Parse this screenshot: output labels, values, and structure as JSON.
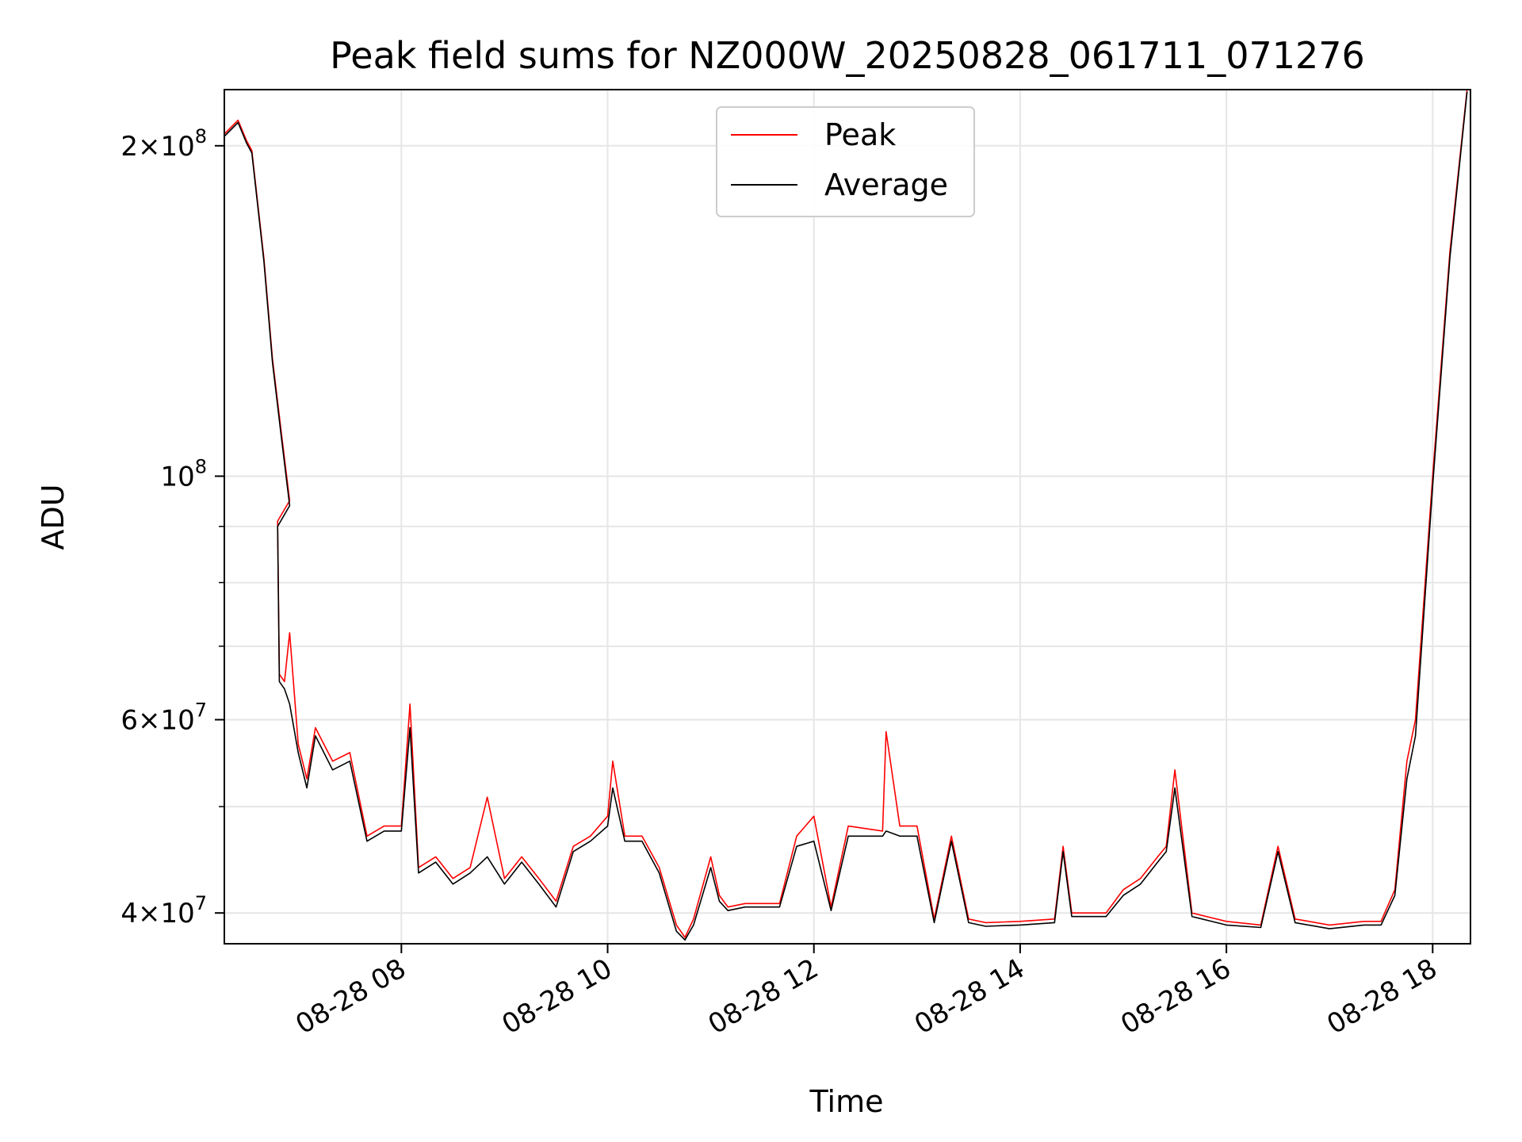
{
  "chart_data": {
    "type": "line",
    "title": "Peak field sums for NZ000W_20250828_061711_071276",
    "xlabel": "Time",
    "ylabel": "ADU",
    "y_scale": "log",
    "ylim": [
      37500000,
      225000000
    ],
    "xlim": [
      "2025-08-28 06:17",
      "2025-08-28 18:22"
    ],
    "grid": true,
    "legend_position": "upper center",
    "x_ticks": [
      {
        "time": "2025-08-28 08:00",
        "label": "08-28 08"
      },
      {
        "time": "2025-08-28 10:00",
        "label": "08-28 10"
      },
      {
        "time": "2025-08-28 12:00",
        "label": "08-28 12"
      },
      {
        "time": "2025-08-28 14:00",
        "label": "08-28 14"
      },
      {
        "time": "2025-08-28 16:00",
        "label": "08-28 16"
      },
      {
        "time": "2025-08-28 18:00",
        "label": "08-28 18"
      }
    ],
    "y_ticks": [
      {
        "value": 40000000,
        "mantissa": "4",
        "exponent": "7"
      },
      {
        "value": 60000000,
        "mantissa": "6",
        "exponent": "7"
      },
      {
        "value": 100000000,
        "mantissa": "",
        "exponent": "8"
      },
      {
        "value": 200000000,
        "mantissa": "2",
        "exponent": "8"
      }
    ],
    "y_minor_ticks": [
      50000000,
      70000000,
      80000000,
      90000000
    ],
    "series": [
      {
        "name": "Peak",
        "color": "#ff0000",
        "x": [
          "2025-08-28 06:17",
          "2025-08-28 06:25",
          "2025-08-28 06:30",
          "2025-08-28 06:33",
          "2025-08-28 06:40",
          "2025-08-28 06:45",
          "2025-08-28 06:50",
          "2025-08-28 06:55",
          "2025-08-28 06:48",
          "2025-08-28 06:49",
          "2025-08-28 06:52",
          "2025-08-28 06:55",
          "2025-08-28 07:00",
          "2025-08-28 07:05",
          "2025-08-28 07:10",
          "2025-08-28 07:20",
          "2025-08-28 07:30",
          "2025-08-28 07:40",
          "2025-08-28 07:50",
          "2025-08-28 08:00",
          "2025-08-28 08:05",
          "2025-08-28 08:10",
          "2025-08-28 08:20",
          "2025-08-28 08:30",
          "2025-08-28 08:40",
          "2025-08-28 08:50",
          "2025-08-28 09:00",
          "2025-08-28 09:10",
          "2025-08-28 09:20",
          "2025-08-28 09:30",
          "2025-08-28 09:40",
          "2025-08-28 09:50",
          "2025-08-28 10:00",
          "2025-08-28 10:03",
          "2025-08-28 10:10",
          "2025-08-28 10:20",
          "2025-08-28 10:30",
          "2025-08-28 10:40",
          "2025-08-28 10:45",
          "2025-08-28 10:50",
          "2025-08-28 11:00",
          "2025-08-28 11:05",
          "2025-08-28 11:10",
          "2025-08-28 11:20",
          "2025-08-28 11:40",
          "2025-08-28 11:50",
          "2025-08-28 12:00",
          "2025-08-28 12:10",
          "2025-08-28 12:20",
          "2025-08-28 12:40",
          "2025-08-28 12:42",
          "2025-08-28 12:50",
          "2025-08-28 13:00",
          "2025-08-28 13:10",
          "2025-08-28 13:20",
          "2025-08-28 13:30",
          "2025-08-28 13:40",
          "2025-08-28 14:00",
          "2025-08-28 14:20",
          "2025-08-28 14:25",
          "2025-08-28 14:30",
          "2025-08-28 14:50",
          "2025-08-28 15:00",
          "2025-08-28 15:10",
          "2025-08-28 15:20",
          "2025-08-28 15:25",
          "2025-08-28 15:30",
          "2025-08-28 15:40",
          "2025-08-28 16:00",
          "2025-08-28 16:20",
          "2025-08-28 16:30",
          "2025-08-28 16:40",
          "2025-08-28 17:00",
          "2025-08-28 17:20",
          "2025-08-28 17:30",
          "2025-08-28 17:38",
          "2025-08-28 17:45",
          "2025-08-28 17:50",
          "2025-08-28 18:00",
          "2025-08-28 18:10",
          "2025-08-28 18:20"
        ],
        "y": [
          205000000,
          211000000,
          202000000,
          198000000,
          158000000,
          128000000,
          110000000,
          95000000,
          91000000,
          66000000,
          65000000,
          72000000,
          57000000,
          53000000,
          59000000,
          55000000,
          56000000,
          47000000,
          48000000,
          48000000,
          62000000,
          44000000,
          45000000,
          43000000,
          44000000,
          51000000,
          43000000,
          45000000,
          43000000,
          41000000,
          46000000,
          47000000,
          49000000,
          55000000,
          47000000,
          47000000,
          44000000,
          39000000,
          38000000,
          39500000,
          45000000,
          41500000,
          40500000,
          40800000,
          40800000,
          47000000,
          49000000,
          40500000,
          48000000,
          47500000,
          58500000,
          48000000,
          48000000,
          39500000,
          47000000,
          39500000,
          39200000,
          39300000,
          39500000,
          46000000,
          40000000,
          40000000,
          42000000,
          43000000,
          45000000,
          46000000,
          54000000,
          40000000,
          39300000,
          39000000,
          46000000,
          39500000,
          39000000,
          39300000,
          39300000,
          42000000,
          55000000,
          60000000,
          100000000,
          160000000,
          225000000
        ]
      },
      {
        "name": "Average",
        "color": "#000000",
        "x": [
          "2025-08-28 06:17",
          "2025-08-28 06:25",
          "2025-08-28 06:30",
          "2025-08-28 06:33",
          "2025-08-28 06:40",
          "2025-08-28 06:45",
          "2025-08-28 06:50",
          "2025-08-28 06:55",
          "2025-08-28 06:48",
          "2025-08-28 06:49",
          "2025-08-28 06:52",
          "2025-08-28 06:55",
          "2025-08-28 07:00",
          "2025-08-28 07:05",
          "2025-08-28 07:10",
          "2025-08-28 07:20",
          "2025-08-28 07:30",
          "2025-08-28 07:40",
          "2025-08-28 07:50",
          "2025-08-28 08:00",
          "2025-08-28 08:05",
          "2025-08-28 08:10",
          "2025-08-28 08:20",
          "2025-08-28 08:30",
          "2025-08-28 08:40",
          "2025-08-28 08:50",
          "2025-08-28 09:00",
          "2025-08-28 09:10",
          "2025-08-28 09:20",
          "2025-08-28 09:30",
          "2025-08-28 09:40",
          "2025-08-28 09:50",
          "2025-08-28 10:00",
          "2025-08-28 10:03",
          "2025-08-28 10:10",
          "2025-08-28 10:20",
          "2025-08-28 10:30",
          "2025-08-28 10:40",
          "2025-08-28 10:45",
          "2025-08-28 10:50",
          "2025-08-28 11:00",
          "2025-08-28 11:05",
          "2025-08-28 11:10",
          "2025-08-28 11:20",
          "2025-08-28 11:40",
          "2025-08-28 11:50",
          "2025-08-28 12:00",
          "2025-08-28 12:10",
          "2025-08-28 12:20",
          "2025-08-28 12:40",
          "2025-08-28 12:42",
          "2025-08-28 12:50",
          "2025-08-28 13:00",
          "2025-08-28 13:10",
          "2025-08-28 13:20",
          "2025-08-28 13:30",
          "2025-08-28 13:40",
          "2025-08-28 14:00",
          "2025-08-28 14:20",
          "2025-08-28 14:25",
          "2025-08-28 14:30",
          "2025-08-28 14:50",
          "2025-08-28 15:00",
          "2025-08-28 15:10",
          "2025-08-28 15:20",
          "2025-08-28 15:25",
          "2025-08-28 15:30",
          "2025-08-28 15:40",
          "2025-08-28 16:00",
          "2025-08-28 16:20",
          "2025-08-28 16:30",
          "2025-08-28 16:40",
          "2025-08-28 17:00",
          "2025-08-28 17:20",
          "2025-08-28 17:30",
          "2025-08-28 17:38",
          "2025-08-28 17:45",
          "2025-08-28 17:50",
          "2025-08-28 18:00",
          "2025-08-28 18:10",
          "2025-08-28 18:20"
        ],
        "y": [
          204000000,
          210000000,
          201000000,
          197000000,
          157000000,
          127000000,
          109000000,
          94000000,
          90000000,
          65000000,
          64000000,
          62000000,
          56000000,
          52000000,
          58000000,
          54000000,
          55000000,
          46500000,
          47500000,
          47500000,
          59000000,
          43500000,
          44500000,
          42500000,
          43500000,
          45000000,
          42500000,
          44500000,
          42500000,
          40500000,
          45500000,
          46500000,
          48000000,
          52000000,
          46500000,
          46500000,
          43500000,
          38500000,
          37800000,
          39000000,
          44000000,
          41000000,
          40200000,
          40500000,
          40500000,
          46000000,
          46500000,
          40200000,
          47000000,
          47000000,
          47500000,
          47000000,
          47000000,
          39200000,
          46500000,
          39200000,
          38900000,
          39000000,
          39200000,
          45500000,
          39700000,
          39700000,
          41500000,
          42500000,
          44500000,
          45500000,
          52000000,
          39700000,
          39000000,
          38800000,
          45500000,
          39200000,
          38700000,
          39000000,
          39000000,
          41500000,
          53000000,
          58000000,
          98000000,
          158000000,
          224000000
        ]
      }
    ]
  }
}
